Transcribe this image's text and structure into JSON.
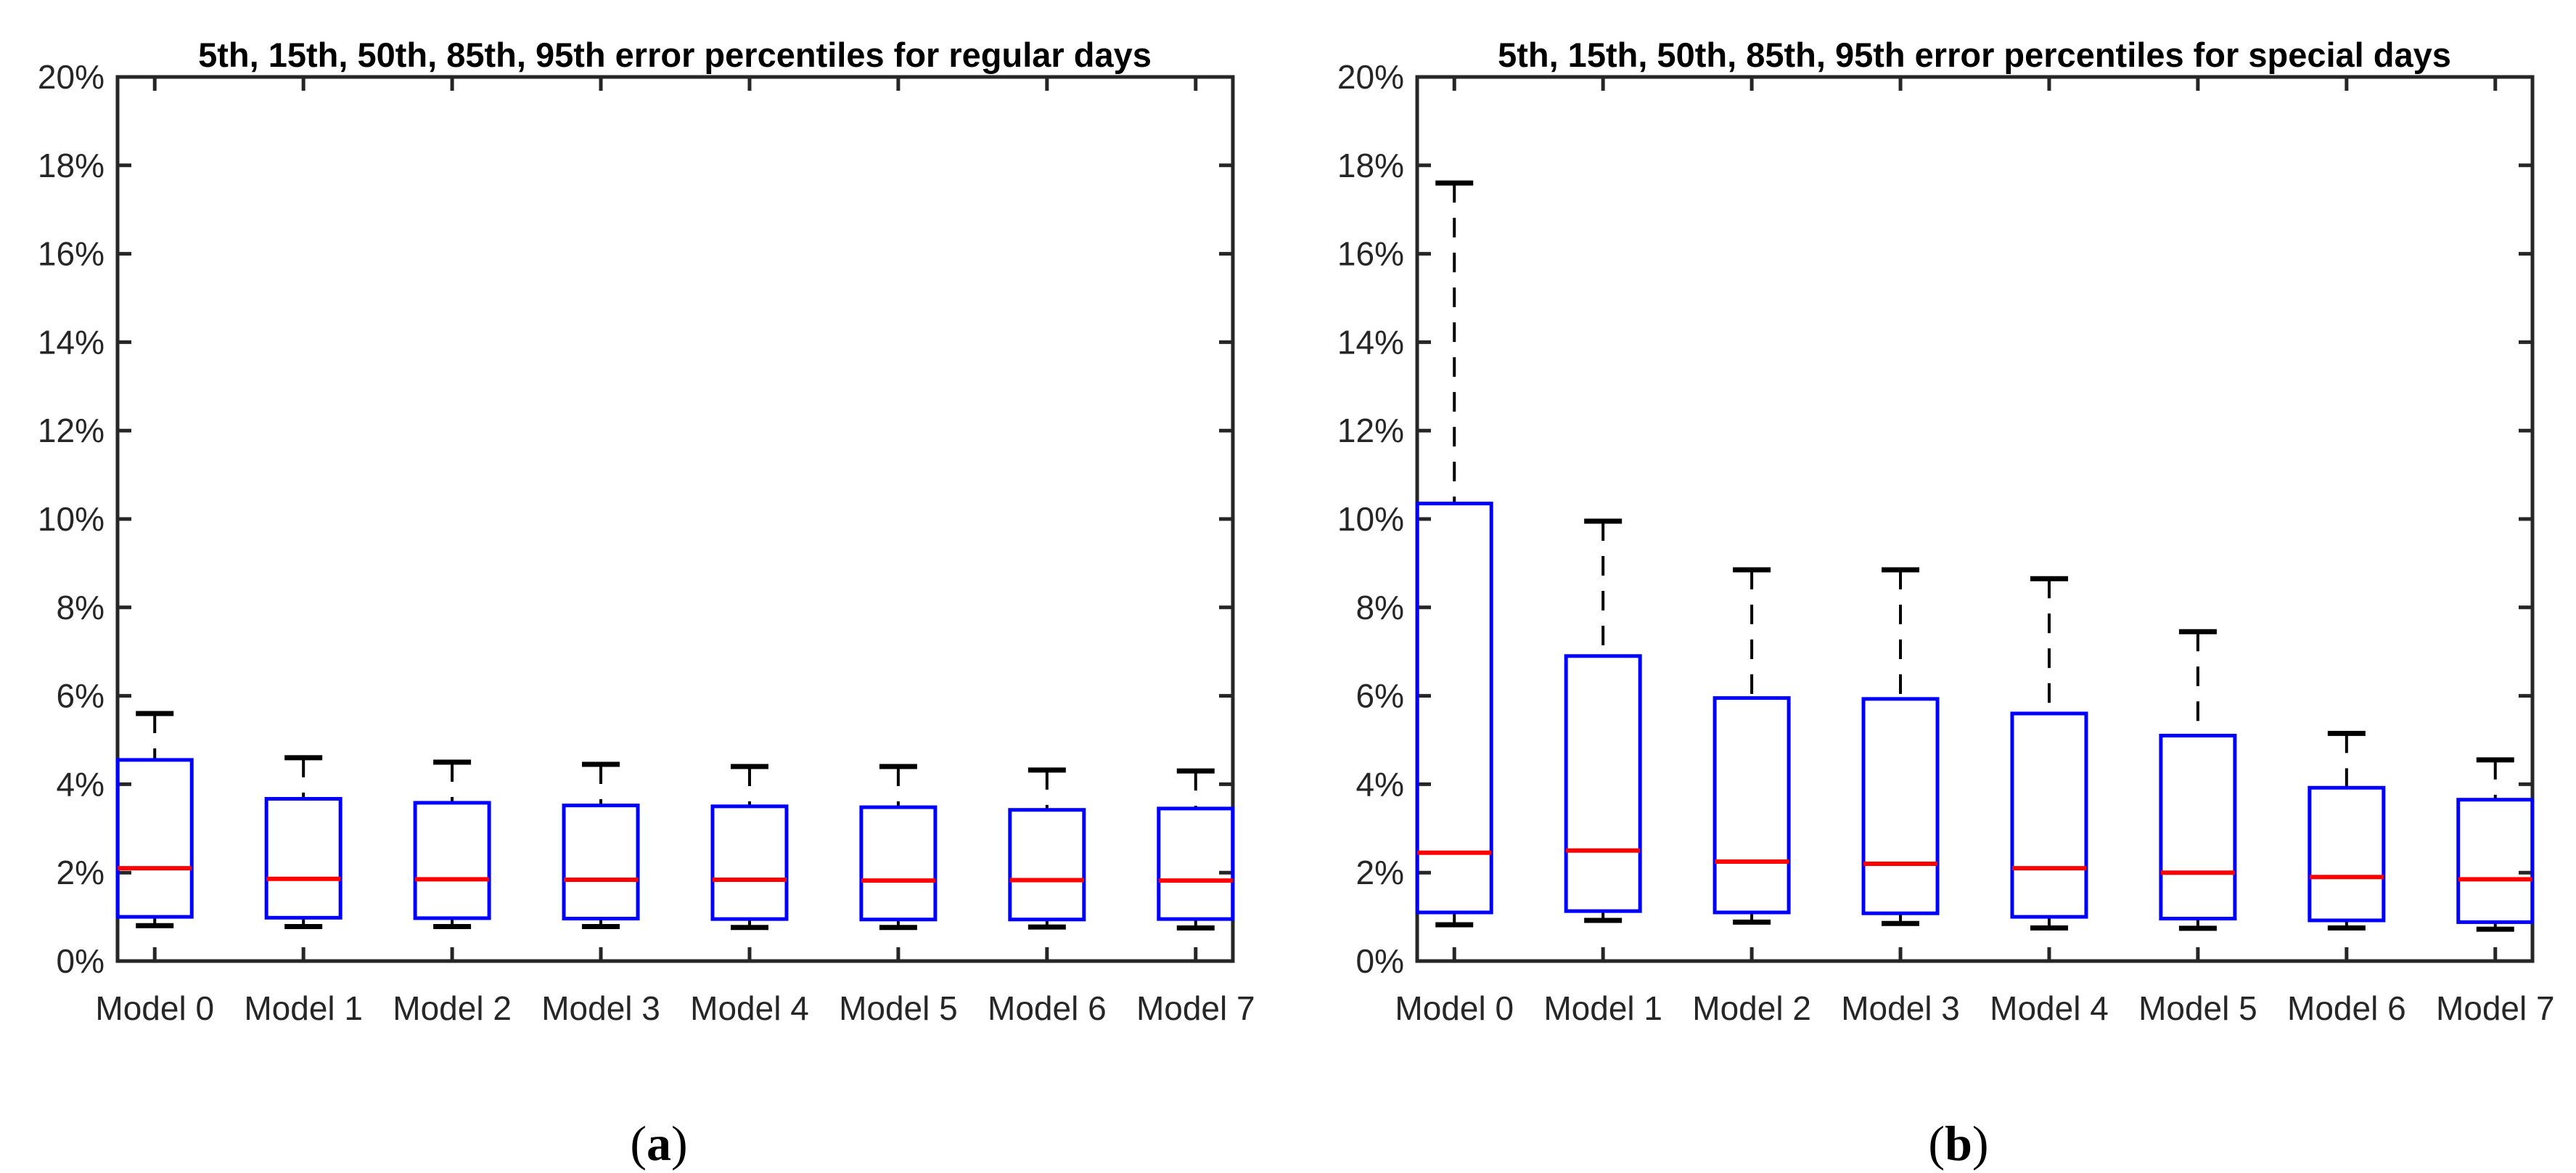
{
  "figure": {
    "captions": [
      {
        "open": "(",
        "letter": "a",
        "close": ")"
      },
      {
        "open": "(",
        "letter": "b",
        "close": ")"
      }
    ]
  },
  "axis": {
    "ylim": [
      0,
      20
    ],
    "y_tick_values": [
      0,
      2,
      4,
      6,
      8,
      10,
      12,
      14,
      16,
      18,
      20
    ],
    "y_tick_labels": [
      "0%",
      "2%",
      "4%",
      "6%",
      "8%",
      "10%",
      "12%",
      "14%",
      "16%",
      "18%",
      "20%"
    ]
  },
  "colors": {
    "box": "#0000FF",
    "median": "#FF0000",
    "whisker": "#000000",
    "cap": "#000000",
    "axis": "#262626",
    "title": "#000000"
  },
  "chart_data": [
    {
      "type": "boxplot",
      "title": "5th, 15th, 50th, 85th, 95th error percentiles for regular days",
      "ylim": [
        0,
        20
      ],
      "y_tick_labels": [
        "0%",
        "2%",
        "4%",
        "6%",
        "8%",
        "10%",
        "12%",
        "14%",
        "16%",
        "18%",
        "20%"
      ],
      "categories": [
        "Model 0",
        "Model 1",
        "Model 2",
        "Model 3",
        "Model 4",
        "Model 5",
        "Model 6",
        "Model 7"
      ],
      "percentiles": [
        "p5",
        "p15",
        "p50",
        "p85",
        "p95"
      ],
      "series": [
        {
          "name": "Model 0",
          "p5": 0.8,
          "p15": 1.0,
          "p50": 2.1,
          "p85": 4.55,
          "p95": 5.6
        },
        {
          "name": "Model 1",
          "p5": 0.78,
          "p15": 0.98,
          "p50": 1.86,
          "p85": 3.67,
          "p95": 4.6
        },
        {
          "name": "Model 2",
          "p5": 0.78,
          "p15": 0.97,
          "p50": 1.85,
          "p85": 3.58,
          "p95": 4.5
        },
        {
          "name": "Model 3",
          "p5": 0.78,
          "p15": 0.96,
          "p50": 1.84,
          "p85": 3.52,
          "p95": 4.45
        },
        {
          "name": "Model 4",
          "p5": 0.76,
          "p15": 0.95,
          "p50": 1.84,
          "p85": 3.5,
          "p95": 4.4
        },
        {
          "name": "Model 5",
          "p5": 0.76,
          "p15": 0.94,
          "p50": 1.82,
          "p85": 3.48,
          "p95": 4.4
        },
        {
          "name": "Model 6",
          "p5": 0.77,
          "p15": 0.94,
          "p50": 1.83,
          "p85": 3.42,
          "p95": 4.32
        },
        {
          "name": "Model 7",
          "p5": 0.75,
          "p15": 0.95,
          "p50": 1.82,
          "p85": 3.45,
          "p95": 4.3
        }
      ]
    },
    {
      "type": "boxplot",
      "title": "5th, 15th, 50th, 85th, 95th error percentiles for special days",
      "ylim": [
        0,
        20
      ],
      "y_tick_labels": [
        "0%",
        "2%",
        "4%",
        "6%",
        "8%",
        "10%",
        "12%",
        "14%",
        "16%",
        "18%",
        "20%"
      ],
      "categories": [
        "Model 0",
        "Model 1",
        "Model 2",
        "Model 3",
        "Model 4",
        "Model 5",
        "Model 6",
        "Model 7"
      ],
      "percentiles": [
        "p5",
        "p15",
        "p50",
        "p85",
        "p95"
      ],
      "series": [
        {
          "name": "Model 0",
          "p5": 0.82,
          "p15": 1.1,
          "p50": 2.45,
          "p85": 10.35,
          "p95": 17.6
        },
        {
          "name": "Model 1",
          "p5": 0.92,
          "p15": 1.13,
          "p50": 2.5,
          "p85": 6.9,
          "p95": 9.95
        },
        {
          "name": "Model 2",
          "p5": 0.88,
          "p15": 1.1,
          "p50": 2.25,
          "p85": 5.95,
          "p95": 8.85
        },
        {
          "name": "Model 3",
          "p5": 0.85,
          "p15": 1.08,
          "p50": 2.2,
          "p85": 5.93,
          "p95": 8.85
        },
        {
          "name": "Model 4",
          "p5": 0.75,
          "p15": 1.0,
          "p50": 2.1,
          "p85": 5.6,
          "p95": 8.65
        },
        {
          "name": "Model 5",
          "p5": 0.74,
          "p15": 0.96,
          "p50": 2.0,
          "p85": 5.1,
          "p95": 7.45
        },
        {
          "name": "Model 6",
          "p5": 0.75,
          "p15": 0.92,
          "p50": 1.9,
          "p85": 3.92,
          "p95": 5.15
        },
        {
          "name": "Model 7",
          "p5": 0.72,
          "p15": 0.88,
          "p50": 1.85,
          "p85": 3.65,
          "p95": 4.55
        }
      ]
    }
  ]
}
